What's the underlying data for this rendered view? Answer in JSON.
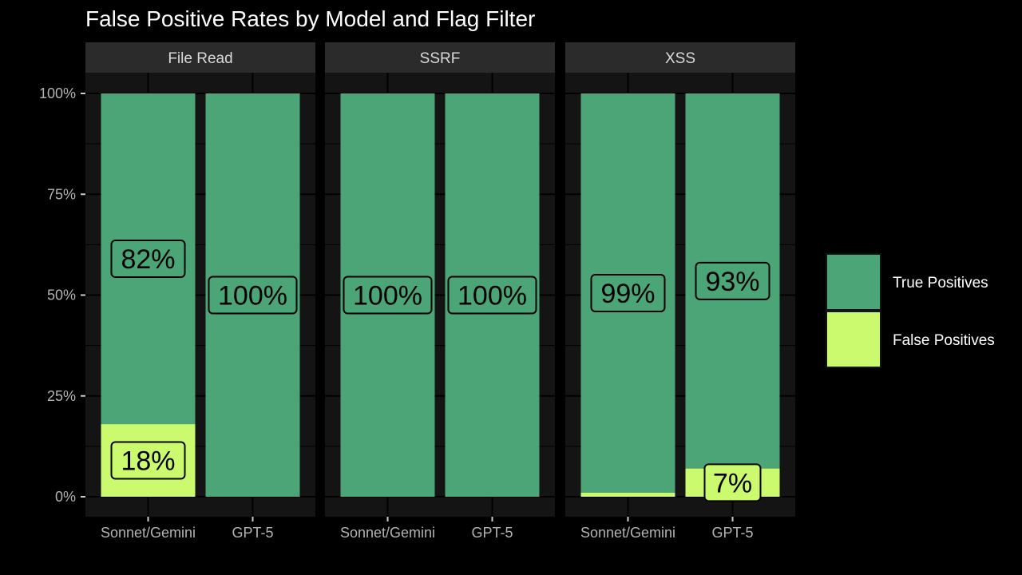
{
  "chart_data": {
    "type": "bar",
    "stacked": true,
    "title": "False Positive Rates by Model and Flag Filter",
    "panels": [
      "File Read",
      "SSRF",
      "XSS"
    ],
    "categories": [
      "Sonnet/Gemini",
      "GPT-5"
    ],
    "ylim": [
      0,
      1
    ],
    "yticks": [
      0,
      0.25,
      0.5,
      0.75,
      1.0
    ],
    "ytick_labels": [
      "0%",
      "25%",
      "50%",
      "75%",
      "100%"
    ],
    "series": [
      {
        "name": "False Positives",
        "color": "#CCFA6E",
        "values": {
          "File Read": [
            0.18,
            0.0
          ],
          "SSRF": [
            0.0,
            0.0
          ],
          "XSS": [
            0.01,
            0.07
          ]
        },
        "labels": {
          "File Read": [
            "18%",
            ""
          ],
          "SSRF": [
            "",
            ""
          ],
          "XSS": [
            "",
            "7%"
          ]
        }
      },
      {
        "name": "True Positives",
        "color": "#4BA576",
        "values": {
          "File Read": [
            0.82,
            1.0
          ],
          "SSRF": [
            1.0,
            1.0
          ],
          "XSS": [
            0.99,
            0.93
          ]
        },
        "labels": {
          "File Read": [
            "82%",
            "100%"
          ],
          "SSRF": [
            "100%",
            "100%"
          ],
          "XSS": [
            "99%",
            "93%"
          ]
        }
      }
    ],
    "legend": {
      "position": "right",
      "entries": [
        "True Positives",
        "False Positives"
      ]
    },
    "grid": true,
    "theme": {
      "background": "#000000",
      "panel_background": "#141414",
      "strip_background": "#2b2b2b",
      "grid_color": "#000000"
    }
  }
}
